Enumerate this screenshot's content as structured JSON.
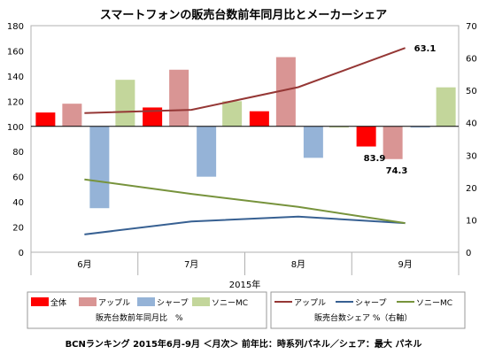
{
  "chart_data": {
    "type": "bar",
    "title": "スマートフォンの販売台数前年同月比とメーカーシェア",
    "categories": [
      "6月",
      "7月",
      "8月",
      "9月"
    ],
    "xlabel": "2015年",
    "y_left": {
      "ylim": [
        0,
        180
      ],
      "ticks": [
        0,
        20,
        40,
        60,
        80,
        100,
        120,
        140,
        160,
        180
      ]
    },
    "y_right": {
      "ylim": [
        0,
        70
      ],
      "ticks": [
        0,
        10,
        20,
        30,
        40,
        50,
        60,
        70
      ]
    },
    "baseline": 100,
    "bar_series": [
      {
        "name": "全体",
        "color": "#ff0000",
        "values": [
          111,
          115,
          112,
          84
        ]
      },
      {
        "name": "アップル",
        "color": "#d99594",
        "values": [
          118,
          145,
          155,
          74
        ]
      },
      {
        "name": "シャープ",
        "color": "#95b3d7",
        "values": [
          35,
          60,
          75,
          99
        ]
      },
      {
        "name": "ソニーMC",
        "color": "#c3d69b",
        "values": [
          137,
          120,
          99,
          131
        ]
      }
    ],
    "line_series": [
      {
        "name": "アップル",
        "color": "#953735",
        "values": [
          43,
          44,
          51,
          63.1
        ]
      },
      {
        "name": "シャープ",
        "color": "#376092",
        "values": [
          5.5,
          9.5,
          11,
          9
        ]
      },
      {
        "name": "ソニーMC",
        "color": "#77933c",
        "values": [
          22.5,
          18,
          14,
          9
        ]
      }
    ],
    "data_labels": [
      {
        "series": "アップル（線）",
        "category": "9月",
        "text": "63.1"
      },
      {
        "series": "全体",
        "category": "9月",
        "text": "83.9"
      },
      {
        "series": "アップル",
        "category": "9月",
        "text": "74.3"
      }
    ],
    "legend_left_title": "販売台数前年同月比　%",
    "legend_right_title": "販売台数シェア %（右軸）",
    "footnote": "BCNランキング 2015年6月-9月 ＜月次＞ 前年比：時系列パネル／シェア：最大 パネル"
  }
}
